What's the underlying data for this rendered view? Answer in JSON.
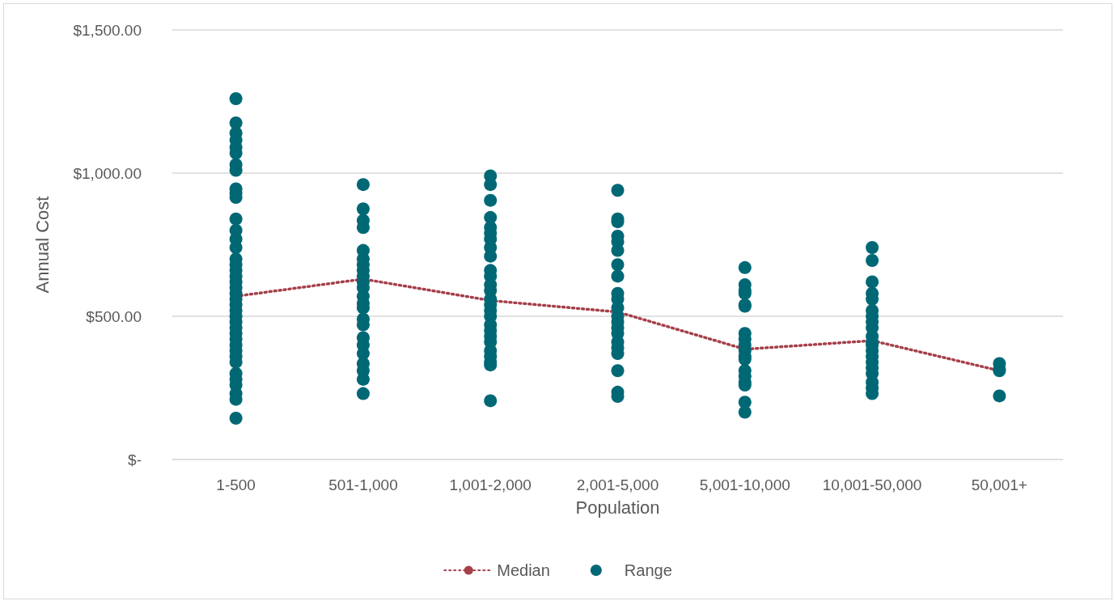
{
  "chart_data": {
    "type": "scatter",
    "xlabel": "Population",
    "ylabel": "Annual Cost",
    "categories": [
      "1-500",
      "501-1,000",
      "1,001-2,000",
      "2,001-5,000",
      "5,001-10,000",
      "10,001-50,000",
      "50,001+"
    ],
    "ylim": [
      0,
      1500
    ],
    "yticks": [
      {
        "value": 0,
        "label": "$-"
      },
      {
        "value": 500,
        "label": "$500.00"
      },
      {
        "value": 1000,
        "label": "$1,000.00"
      },
      {
        "value": 1500,
        "label": "$1,500.00"
      }
    ],
    "grid": "y",
    "legend": "bottom",
    "series": [
      {
        "name": "Median",
        "type": "line",
        "color": "#a5404a",
        "line_style": "dotted",
        "marker": "none",
        "values": [
          570,
          630,
          555,
          515,
          385,
          415,
          310
        ]
      },
      {
        "name": "Range",
        "color": "#006875",
        "marker": "circle",
        "x": [
          "1-500",
          "1-500",
          "1-500",
          "1-500",
          "1-500",
          "1-500",
          "1-500",
          "1-500",
          "1-500",
          "1-500",
          "1-500",
          "1-500",
          "1-500",
          "1-500",
          "1-500",
          "1-500",
          "1-500",
          "1-500",
          "1-500",
          "1-500",
          "1-500",
          "1-500",
          "1-500",
          "1-500",
          "1-500",
          "1-500",
          "1-500",
          "1-500",
          "1-500",
          "1-500",
          "1-500",
          "1-500",
          "1-500",
          "1-500",
          "1-500",
          "1-500",
          "1-500",
          "1-500",
          "1-500",
          "1-500",
          "501-1,000",
          "501-1,000",
          "501-1,000",
          "501-1,000",
          "501-1,000",
          "501-1,000",
          "501-1,000",
          "501-1,000",
          "501-1,000",
          "501-1,000",
          "501-1,000",
          "501-1,000",
          "501-1,000",
          "501-1,000",
          "501-1,000",
          "501-1,000",
          "501-1,000",
          "501-1,000",
          "501-1,000",
          "501-1,000",
          "501-1,000",
          "501-1,000",
          "501-1,000",
          "1,001-2,000",
          "1,001-2,000",
          "1,001-2,000",
          "1,001-2,000",
          "1,001-2,000",
          "1,001-2,000",
          "1,001-2,000",
          "1,001-2,000",
          "1,001-2,000",
          "1,001-2,000",
          "1,001-2,000",
          "1,001-2,000",
          "1,001-2,000",
          "1,001-2,000",
          "1,001-2,000",
          "1,001-2,000",
          "1,001-2,000",
          "1,001-2,000",
          "1,001-2,000",
          "1,001-2,000",
          "1,001-2,000",
          "1,001-2,000",
          "1,001-2,000",
          "1,001-2,000",
          "1,001-2,000",
          "1,001-2,000",
          "2,001-5,000",
          "2,001-5,000",
          "2,001-5,000",
          "2,001-5,000",
          "2,001-5,000",
          "2,001-5,000",
          "2,001-5,000",
          "2,001-5,000",
          "2,001-5,000",
          "2,001-5,000",
          "2,001-5,000",
          "2,001-5,000",
          "2,001-5,000",
          "2,001-5,000",
          "2,001-5,000",
          "2,001-5,000",
          "2,001-5,000",
          "2,001-5,000",
          "2,001-5,000",
          "2,001-5,000",
          "2,001-5,000",
          "5,001-10,000",
          "5,001-10,000",
          "5,001-10,000",
          "5,001-10,000",
          "5,001-10,000",
          "5,001-10,000",
          "5,001-10,000",
          "5,001-10,000",
          "5,001-10,000",
          "5,001-10,000",
          "5,001-10,000",
          "5,001-10,000",
          "5,001-10,000",
          "5,001-10,000",
          "5,001-10,000",
          "5,001-10,000",
          "5,001-10,000",
          "5,001-10,000",
          "10,001-50,000",
          "10,001-50,000",
          "10,001-50,000",
          "10,001-50,000",
          "10,001-50,000",
          "10,001-50,000",
          "10,001-50,000",
          "10,001-50,000",
          "10,001-50,000",
          "10,001-50,000",
          "10,001-50,000",
          "10,001-50,000",
          "10,001-50,000",
          "10,001-50,000",
          "10,001-50,000",
          "10,001-50,000",
          "10,001-50,000",
          "10,001-50,000",
          "10,001-50,000",
          "10,001-50,000",
          "50,001+",
          "50,001+",
          "50,001+",
          "50,001+"
        ],
        "values": [
          1260,
          1175,
          1140,
          1115,
          1090,
          1070,
          1030,
          1010,
          945,
          930,
          915,
          840,
          800,
          770,
          740,
          700,
          680,
          660,
          640,
          620,
          600,
          580,
          560,
          540,
          520,
          500,
          480,
          460,
          440,
          420,
          400,
          380,
          360,
          340,
          300,
          280,
          260,
          230,
          210,
          144,
          960,
          875,
          835,
          810,
          730,
          700,
          680,
          660,
          640,
          620,
          600,
          570,
          545,
          530,
          490,
          470,
          425,
          400,
          370,
          335,
          310,
          280,
          230,
          990,
          960,
          905,
          845,
          810,
          790,
          770,
          740,
          710,
          660,
          640,
          610,
          590,
          560,
          540,
          520,
          500,
          470,
          450,
          430,
          410,
          380,
          360,
          340,
          330,
          205,
          940,
          840,
          830,
          780,
          760,
          730,
          680,
          640,
          580,
          560,
          530,
          500,
          480,
          460,
          440,
          410,
          390,
          370,
          310,
          235,
          220,
          670,
          610,
          590,
          580,
          540,
          535,
          440,
          420,
          400,
          380,
          360,
          350,
          310,
          290,
          270,
          260,
          200,
          165,
          740,
          695,
          620,
          580,
          560,
          520,
          500,
          480,
          460,
          430,
          410,
          400,
          380,
          360,
          340,
          320,
          300,
          270,
          250,
          230,
          335,
          315,
          310,
          222
        ]
      }
    ]
  }
}
